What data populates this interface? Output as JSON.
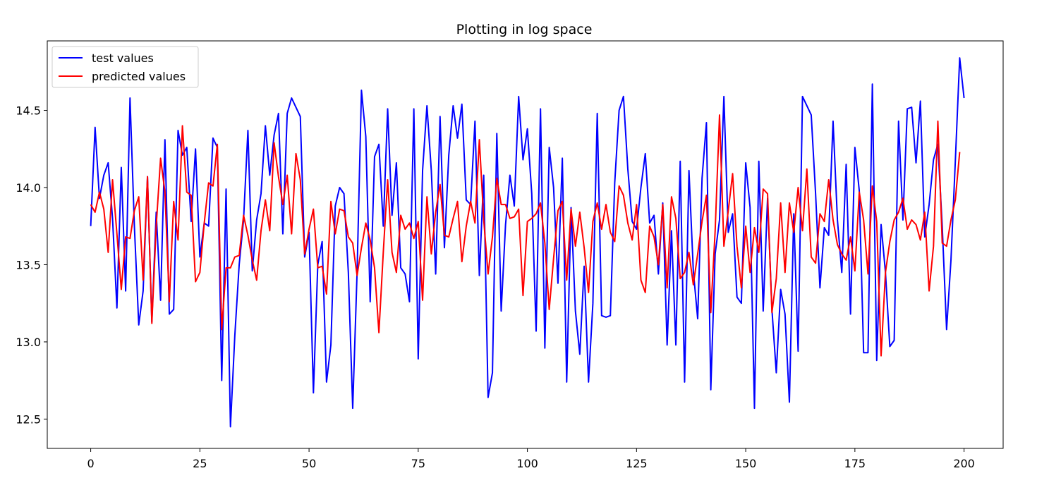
{
  "chart_data": {
    "type": "line",
    "title": "Plotting in log space",
    "xlabel": "",
    "ylabel": "",
    "xlim": [
      -9.95,
      208.95
    ],
    "ylim": [
      12.31,
      14.95
    ],
    "xticks": [
      0,
      25,
      50,
      75,
      100,
      125,
      150,
      175,
      200
    ],
    "xtick_labels": [
      "0",
      "25",
      "50",
      "75",
      "100",
      "125",
      "150",
      "175",
      "200"
    ],
    "yticks": [
      12.5,
      13.0,
      13.5,
      14.0,
      14.5
    ],
    "ytick_labels": [
      "12.5",
      "13.0",
      "13.5",
      "14.0",
      "14.5"
    ],
    "grid": false,
    "legend_position": "upper-left",
    "series": [
      {
        "name": "test values",
        "color": "#0000ff",
        "values": [
          13.75,
          14.39,
          13.93,
          14.08,
          14.16,
          13.8,
          13.22,
          14.13,
          13.33,
          14.58,
          13.75,
          13.11,
          13.33,
          14.07,
          13.13,
          13.84,
          13.27,
          14.31,
          13.18,
          13.21,
          14.37,
          14.21,
          14.26,
          13.78,
          14.25,
          13.55,
          13.77,
          13.75,
          14.32,
          14.26,
          12.75,
          13.99,
          12.45,
          13.04,
          13.5,
          13.79,
          14.37,
          13.46,
          13.79,
          13.96,
          14.4,
          14.08,
          14.34,
          14.48,
          13.7,
          14.48,
          14.58,
          14.52,
          14.46,
          13.55,
          13.71,
          12.67,
          13.5,
          13.65,
          12.74,
          12.98,
          13.88,
          14.0,
          13.96,
          13.45,
          12.57,
          13.45,
          14.63,
          14.33,
          13.26,
          14.2,
          14.28,
          13.75,
          14.51,
          13.82,
          14.16,
          13.48,
          13.44,
          13.26,
          14.51,
          12.89,
          14.11,
          14.53,
          14.11,
          13.44,
          14.46,
          13.61,
          14.21,
          14.53,
          14.32,
          14.54,
          13.92,
          13.89,
          14.43,
          13.43,
          14.08,
          12.64,
          12.8,
          14.35,
          13.2,
          13.76,
          14.08,
          13.88,
          14.59,
          14.18,
          14.38,
          13.96,
          13.07,
          14.51,
          12.96,
          14.26,
          14.0,
          13.38,
          14.19,
          12.74,
          13.87,
          13.2,
          12.92,
          13.49,
          12.74,
          13.25,
          14.48,
          13.17,
          13.16,
          13.17,
          14.03,
          14.5,
          14.59,
          14.12,
          13.78,
          13.73,
          14.0,
          14.22,
          13.77,
          13.82,
          13.44,
          13.9,
          12.98,
          13.72,
          12.98,
          14.17,
          12.74,
          14.11,
          13.46,
          13.15,
          14.06,
          14.42,
          12.69,
          13.57,
          13.79,
          14.59,
          13.71,
          13.83,
          13.29,
          13.25,
          14.16,
          13.87,
          12.57,
          14.17,
          13.2,
          13.93,
          13.21,
          12.8,
          13.34,
          13.18,
          12.61,
          13.83,
          12.94,
          14.59,
          14.53,
          14.47,
          13.96,
          13.35,
          13.74,
          13.69,
          14.43,
          13.79,
          13.45,
          14.15,
          13.18,
          14.26,
          13.98,
          12.93,
          12.93,
          14.67,
          12.88,
          13.76,
          13.45,
          12.97,
          13.01,
          14.43,
          13.79,
          14.51,
          14.52,
          14.16,
          14.56,
          13.68,
          13.89,
          14.18,
          14.28,
          13.75,
          13.08,
          13.53,
          14.17,
          14.84,
          14.58
        ]
      },
      {
        "name": "predicted values",
        "color": "#ff0000",
        "values": [
          13.89,
          13.84,
          13.97,
          13.86,
          13.58,
          14.05,
          13.7,
          13.34,
          13.68,
          13.67,
          13.85,
          13.94,
          13.4,
          14.07,
          13.12,
          13.75,
          14.19,
          13.97,
          13.26,
          13.91,
          13.66,
          14.4,
          13.97,
          13.95,
          13.39,
          13.45,
          13.77,
          14.03,
          14.01,
          14.28,
          13.08,
          13.48,
          13.48,
          13.55,
          13.56,
          13.82,
          13.69,
          13.53,
          13.4,
          13.72,
          13.92,
          13.72,
          14.29,
          14.07,
          13.89,
          14.08,
          13.7,
          14.22,
          14.05,
          13.57,
          13.73,
          13.86,
          13.48,
          13.49,
          13.31,
          13.91,
          13.7,
          13.86,
          13.85,
          13.68,
          13.64,
          13.43,
          13.61,
          13.77,
          13.66,
          13.48,
          13.06,
          13.58,
          14.05,
          13.58,
          13.45,
          13.82,
          13.73,
          13.77,
          13.67,
          13.78,
          13.27,
          13.94,
          13.57,
          13.84,
          14.02,
          13.69,
          13.68,
          13.8,
          13.91,
          13.52,
          13.75,
          13.91,
          13.77,
          14.31,
          13.79,
          13.44,
          13.68,
          14.06,
          13.89,
          13.89,
          13.8,
          13.81,
          13.86,
          13.3,
          13.78,
          13.8,
          13.83,
          13.9,
          13.64,
          13.21,
          13.54,
          13.85,
          13.91,
          13.4,
          13.86,
          13.62,
          13.84,
          13.61,
          13.32,
          13.78,
          13.9,
          13.73,
          13.89,
          13.71,
          13.65,
          14.01,
          13.95,
          13.77,
          13.66,
          13.89,
          13.4,
          13.32,
          13.75,
          13.68,
          13.5,
          13.89,
          13.35,
          13.94,
          13.8,
          13.41,
          13.45,
          13.58,
          13.37,
          13.57,
          13.78,
          13.95,
          13.19,
          13.72,
          14.47,
          13.62,
          13.85,
          14.09,
          13.62,
          13.35,
          13.75,
          13.45,
          13.74,
          13.58,
          13.99,
          13.96,
          13.19,
          13.41,
          13.9,
          13.45,
          13.9,
          13.71,
          14.0,
          13.72,
          14.12,
          13.55,
          13.51,
          13.83,
          13.78,
          14.05,
          13.79,
          13.63,
          13.57,
          13.53,
          13.68,
          13.46,
          13.97,
          13.79,
          13.44,
          14.01,
          13.78,
          12.91,
          13.45,
          13.65,
          13.79,
          13.84,
          13.93,
          13.73,
          13.79,
          13.76,
          13.66,
          13.84,
          13.33,
          13.62,
          14.43,
          13.64,
          13.62,
          13.79,
          13.92,
          14.23
        ]
      }
    ]
  }
}
